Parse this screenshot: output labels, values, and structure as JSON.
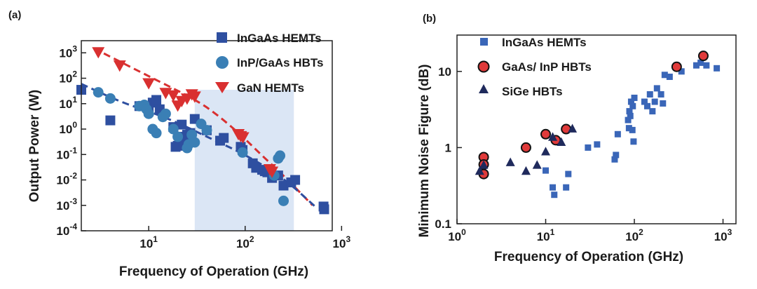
{
  "chart_data": [
    {
      "type": "scatter",
      "panel_label": "(a)",
      "xlabel": "Frequency of Operation (GHz)",
      "ylabel": "Output Power (W)",
      "xscale": "log",
      "yscale": "log",
      "xlim": [
        2,
        800
      ],
      "ylim": [
        0.0001,
        3000
      ],
      "x_ticks": [
        {
          "v": 10,
          "b": "10",
          "e": "1"
        },
        {
          "v": 100,
          "b": "10",
          "e": "2"
        },
        {
          "v": 1000,
          "b": "10",
          "e": "3"
        }
      ],
      "y_ticks": [
        {
          "v": 1000,
          "b": "10",
          "e": "3"
        },
        {
          "v": 100,
          "b": "10",
          "e": "2"
        },
        {
          "v": 10,
          "b": "10",
          "e": "1"
        },
        {
          "v": 1,
          "b": "10",
          "e": "0"
        },
        {
          "v": 0.1,
          "b": "10",
          "e": "-1"
        },
        {
          "v": 0.01,
          "b": "10",
          "e": "-2"
        },
        {
          "v": 0.001,
          "b": "10",
          "e": "-3"
        },
        {
          "v": 0.0001,
          "b": "10",
          "e": "-4"
        }
      ],
      "shaded_region": [
        30,
        320
      ],
      "legend_position": "top-right",
      "series": [
        {
          "name": "InGaAs HEMTs",
          "marker": "square",
          "color": "#2e4fa0",
          "points": [
            [
              2,
              35
            ],
            [
              4,
              2.2
            ],
            [
              8,
              8
            ],
            [
              10,
              5
            ],
            [
              11,
              11
            ],
            [
              12,
              14
            ],
            [
              13,
              6
            ],
            [
              18,
              1.2
            ],
            [
              19,
              0.2
            ],
            [
              20,
              0.22
            ],
            [
              21,
              0.5
            ],
            [
              22,
              1.5
            ],
            [
              23,
              0.3
            ],
            [
              25,
              0.6
            ],
            [
              27,
              0.7
            ],
            [
              30,
              2.5
            ],
            [
              40,
              0.9
            ],
            [
              55,
              0.35
            ],
            [
              60,
              0.45
            ],
            [
              90,
              0.2
            ],
            [
              94,
              0.15
            ],
            [
              120,
              0.045
            ],
            [
              130,
              0.03
            ],
            [
              150,
              0.025
            ],
            [
              160,
              0.022
            ],
            [
              170,
              0.02
            ],
            [
              190,
              0.012
            ],
            [
              220,
              0.015
            ],
            [
              250,
              0.006
            ],
            [
              300,
              0.008
            ],
            [
              330,
              0.01
            ],
            [
              650,
              0.0009
            ],
            [
              660,
              0.0007
            ]
          ]
        },
        {
          "name": "InP/GaAs HBTs",
          "marker": "circle",
          "color": "#3a7fb5",
          "points": [
            [
              3,
              28
            ],
            [
              4,
              16
            ],
            [
              8,
              8
            ],
            [
              9,
              9
            ],
            [
              9.5,
              6
            ],
            [
              10,
              4
            ],
            [
              11,
              1
            ],
            [
              12,
              0.7
            ],
            [
              14,
              3
            ],
            [
              15,
              4
            ],
            [
              18,
              1
            ],
            [
              20,
              0.5
            ],
            [
              25,
              0.18
            ],
            [
              26,
              0.25
            ],
            [
              28,
              0.6
            ],
            [
              30,
              0.3
            ],
            [
              35,
              1.6
            ],
            [
              40,
              0.9
            ],
            [
              94,
              0.12
            ],
            [
              200,
              0.015
            ],
            [
              220,
              0.07
            ],
            [
              230,
              0.09
            ],
            [
              250,
              0.0015
            ]
          ]
        },
        {
          "name": "GaN HEMTs",
          "marker": "triangle-down",
          "color": "#d93030",
          "points": [
            [
              3,
              1000
            ],
            [
              5,
              300
            ],
            [
              10,
              60
            ],
            [
              15,
              25
            ],
            [
              18,
              20
            ],
            [
              20,
              8
            ],
            [
              22,
              12
            ],
            [
              25,
              15
            ],
            [
              28,
              22
            ],
            [
              30,
              18
            ],
            [
              85,
              0.6
            ],
            [
              90,
              0.5
            ],
            [
              95,
              0.45
            ],
            [
              180,
              0.025
            ],
            [
              190,
              0.02
            ]
          ]
        }
      ],
      "trendlines": [
        {
          "color": "#d93030",
          "points": [
            [
              2.7,
              1500
            ],
            [
              10,
              120
            ],
            [
              30,
              15
            ],
            [
              50,
              4
            ],
            [
              90,
              0.6
            ],
            [
              150,
              0.09
            ],
            [
              250,
              0.015
            ],
            [
              500,
              0.001
            ]
          ]
        },
        {
          "color": "#2e4fa0",
          "points": [
            [
              2,
              60
            ],
            [
              5,
              12
            ],
            [
              10,
              5
            ],
            [
              20,
              1.8
            ],
            [
              40,
              0.5
            ],
            [
              100,
              0.1
            ],
            [
              250,
              0.012
            ],
            [
              550,
              0.0008
            ]
          ]
        }
      ]
    },
    {
      "type": "scatter",
      "panel_label": "(b)",
      "xlabel": "Frequency of Operation (GHz)",
      "ylabel": "Minimum Noise Figure (dB)",
      "xscale": "log",
      "yscale": "log",
      "xlim": [
        1,
        1400
      ],
      "ylim": [
        0.1,
        30
      ],
      "x_ticks": [
        {
          "v": 1,
          "b": "10",
          "e": "0"
        },
        {
          "v": 10,
          "b": "10",
          "e": "1"
        },
        {
          "v": 100,
          "b": "10",
          "e": "2"
        },
        {
          "v": 1000,
          "b": "10",
          "e": "3"
        }
      ],
      "y_ticks": [
        {
          "v": 0.1,
          "label": "0.1"
        },
        {
          "v": 1,
          "label": "1"
        },
        {
          "v": 10,
          "label": "10"
        }
      ],
      "legend_position": "top-left",
      "series": [
        {
          "name": "InGaAs HEMTs",
          "marker": "square",
          "color": "#3a66b8",
          "points": [
            [
              10,
              0.5
            ],
            [
              12,
              0.3
            ],
            [
              12.5,
              0.24
            ],
            [
              17,
              0.3
            ],
            [
              18,
              0.45
            ],
            [
              30,
              1
            ],
            [
              38,
              1.1
            ],
            [
              60,
              0.7
            ],
            [
              62,
              0.8
            ],
            [
              65,
              1.5
            ],
            [
              85,
              2.3
            ],
            [
              87,
              1.8
            ],
            [
              88,
              3
            ],
            [
              90,
              2.6
            ],
            [
              92,
              4
            ],
            [
              95,
              1.7
            ],
            [
              96,
              3.5
            ],
            [
              98,
              1.2
            ],
            [
              100,
              4.5
            ],
            [
              130,
              4
            ],
            [
              140,
              3.5
            ],
            [
              150,
              5
            ],
            [
              160,
              3
            ],
            [
              170,
              4
            ],
            [
              180,
              6
            ],
            [
              200,
              5
            ],
            [
              210,
              3.8
            ],
            [
              220,
              9
            ],
            [
              250,
              8.5
            ],
            [
              300,
              12
            ],
            [
              340,
              10
            ],
            [
              500,
              12
            ],
            [
              560,
              13
            ],
            [
              650,
              12
            ],
            [
              850,
              11
            ]
          ]
        },
        {
          "name": "GaAs/ InP HBTs",
          "marker": "circle",
          "color": "#e03a3a",
          "points": [
            [
              2,
              0.75
            ],
            [
              2,
              0.6
            ],
            [
              2,
              0.45
            ],
            [
              6,
              1
            ],
            [
              10,
              1.5
            ],
            [
              13,
              1.25
            ],
            [
              17,
              1.75
            ],
            [
              300,
              11.5
            ],
            [
              600,
              16
            ]
          ]
        },
        {
          "name": "SiGe HBTs",
          "marker": "triangle-up",
          "color": "#1f2a5c",
          "points": [
            [
              1.8,
              0.5
            ],
            [
              2,
              0.6
            ],
            [
              4,
              0.65
            ],
            [
              6,
              0.5
            ],
            [
              8,
              0.6
            ],
            [
              10,
              0.9
            ],
            [
              12,
              1.4
            ],
            [
              15,
              1.2
            ],
            [
              20,
              1.8
            ]
          ]
        }
      ]
    }
  ]
}
